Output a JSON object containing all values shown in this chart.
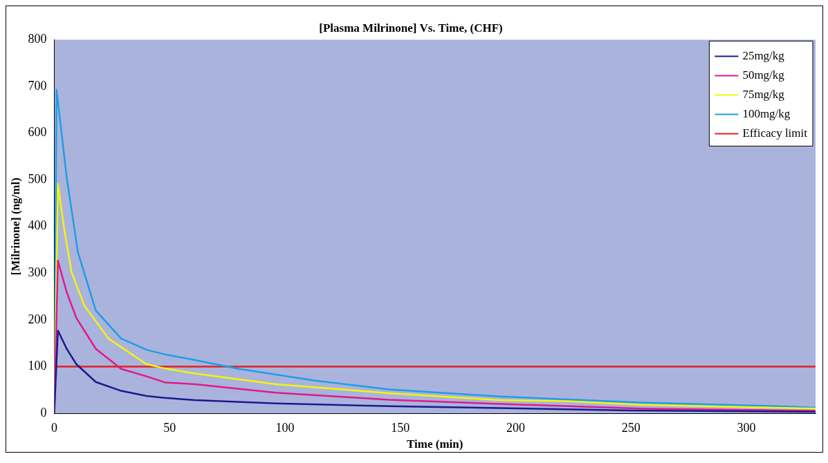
{
  "chart_data": {
    "type": "line",
    "title": "[Plasma Milrinone] Vs. Time, (CHF)",
    "xlabel": "Time (min)",
    "ylabel": "[Milrinone] (ng/ml)",
    "xlim": [
      0,
      330
    ],
    "xticks": [
      0,
      50,
      100,
      150,
      200,
      250,
      300
    ],
    "ylim": [
      0,
      800
    ],
    "yticks": [
      0,
      100,
      200,
      300,
      400,
      500,
      600,
      700,
      800
    ],
    "grid": false,
    "legend": "top right",
    "marker": "none",
    "line_style": "solid",
    "series": [
      {
        "name": "25mg/kg",
        "color": "#1a1a8c",
        "x": [
          0,
          1.6,
          5.4,
          9.6,
          18,
          29,
          40,
          48,
          61,
          96,
          145,
          193,
          250,
          330
        ],
        "values": [
          0,
          177,
          138,
          105,
          67,
          48,
          37,
          33,
          28,
          21,
          15,
          11,
          6,
          3
        ]
      },
      {
        "name": "50mg/kg",
        "color": "#e0198c",
        "x": [
          0,
          1.6,
          5.4,
          9.6,
          18,
          29,
          40,
          48,
          61,
          96,
          145,
          193,
          254,
          330
        ],
        "values": [
          0,
          327,
          259,
          204,
          138,
          95,
          79,
          66,
          62,
          44,
          29,
          20,
          10,
          5
        ]
      },
      {
        "name": "75mg/kg",
        "color": "#f5f50a",
        "x": [
          0,
          1.6,
          4.3,
          7.5,
          13,
          23.5,
          40,
          48,
          61,
          96,
          145,
          193,
          222,
          254,
          330
        ],
        "values": [
          0,
          491,
          395,
          302,
          231,
          160,
          105,
          96,
          85,
          62,
          43,
          28,
          26,
          18,
          10
        ]
      },
      {
        "name": "100mg/kg",
        "color": "#1e9ee6",
        "x": [
          0,
          1,
          5.4,
          10.2,
          18,
          29,
          40,
          48,
          61,
          80,
          113,
          145,
          193,
          254,
          313,
          330
        ],
        "values": [
          0,
          693,
          505,
          346,
          220,
          160,
          136,
          126,
          114,
          95,
          70,
          51,
          36,
          23,
          15,
          12
        ]
      },
      {
        "name": "Efficacy limit",
        "color": "#e61e1e",
        "x": [
          0,
          330
        ],
        "values": [
          100,
          100
        ]
      }
    ]
  }
}
